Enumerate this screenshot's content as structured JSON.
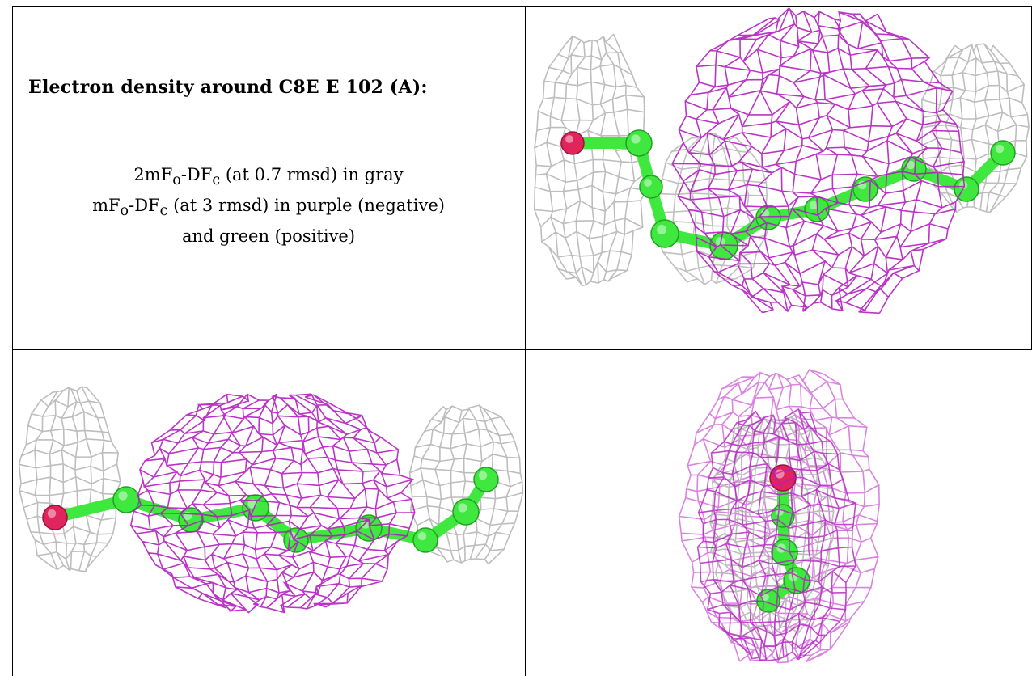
{
  "title": "Electron density around C8E E 102 (A):",
  "legend": {
    "line1": {
      "prefix": "2mF",
      "sub1": "o",
      "mid": "-DF",
      "sub2": "c",
      "suffix": " (at 0.7 rmsd) in gray"
    },
    "line2": {
      "prefix": "mF",
      "sub1": "o",
      "mid": "-DF",
      "sub2": "c",
      "suffix": " (at 3 rmsd) in purple (negative)"
    },
    "line3": "and green (positive)"
  },
  "colors": {
    "mesh_gray": "#b9b9b9",
    "mesh_purple": "#b31ec0",
    "mesh_purple_light": "#d36fdb",
    "carbon_green": "#3ee83e",
    "oxygen_red": "#e0245c"
  }
}
